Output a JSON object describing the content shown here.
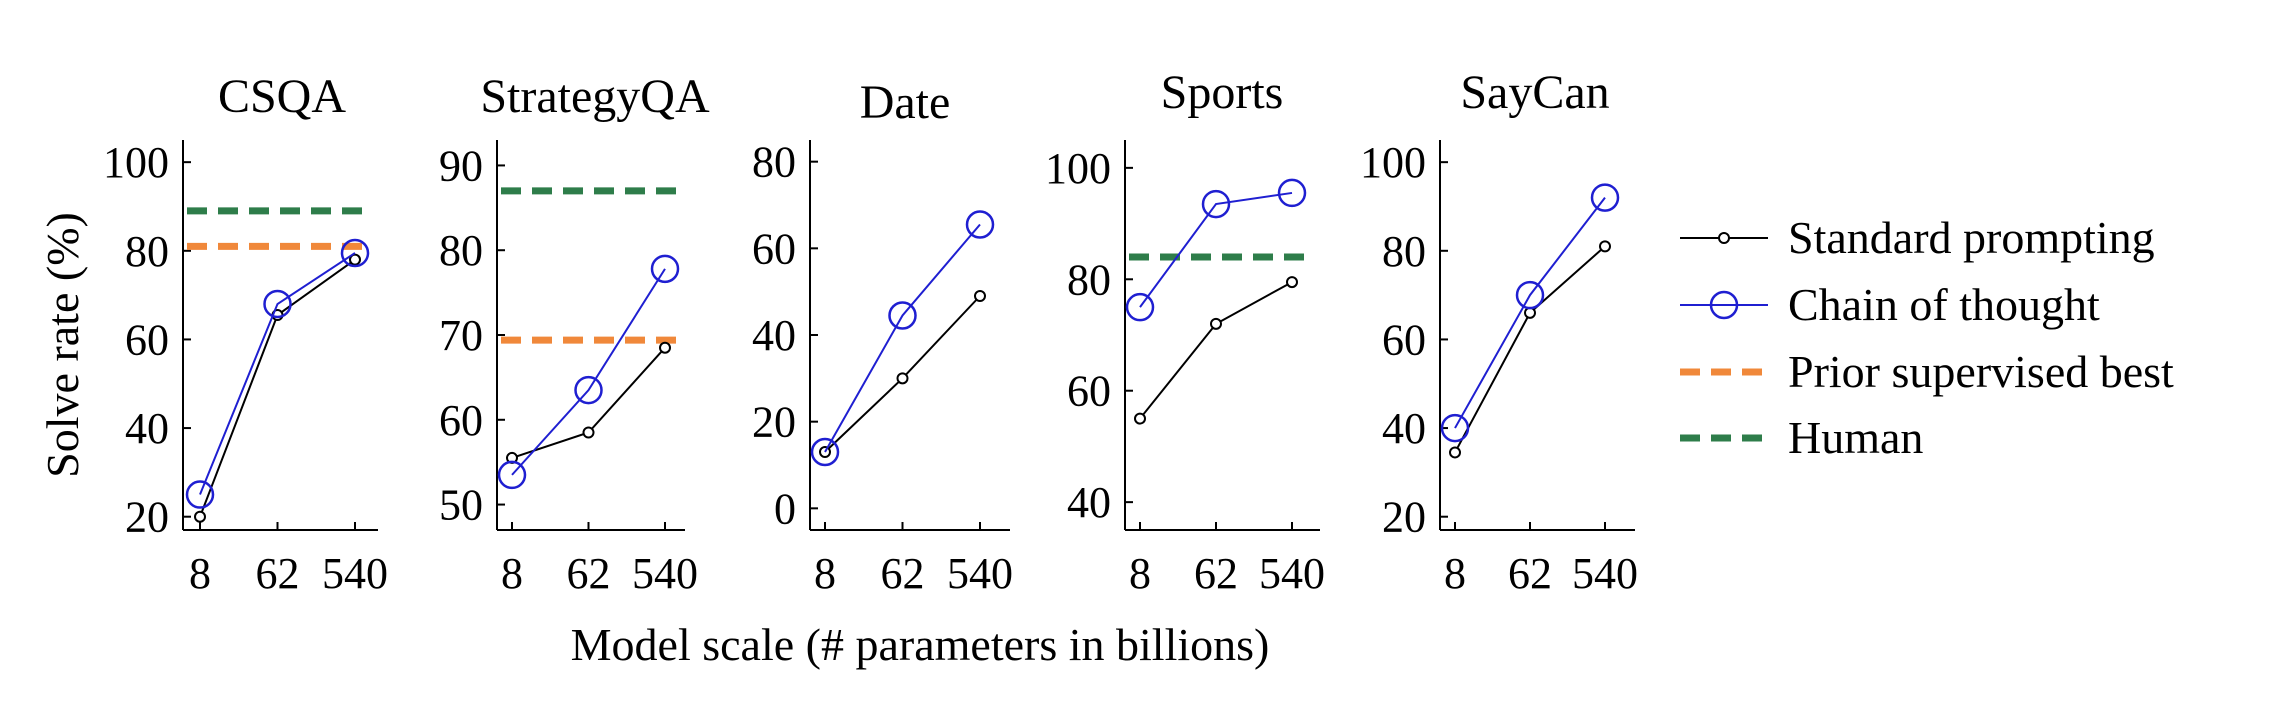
{
  "figure": {
    "ylabel": "Solve rate (%)",
    "xlabel": "Model scale (# parameters in billions)"
  },
  "legend": {
    "position": "right",
    "items": [
      {
        "label": "Standard prompting",
        "kind": "line-small-marker",
        "color": "#000000"
      },
      {
        "label": "Chain of thought",
        "kind": "line-large-marker",
        "color": "#1f1fd1"
      },
      {
        "label": "Prior supervised best",
        "kind": "dashed",
        "color": "#f0883a"
      },
      {
        "label": "Human",
        "kind": "dashed",
        "color": "#2e7d4a"
      }
    ]
  },
  "colors": {
    "standard": "#000000",
    "cot": "#1f1fd1",
    "prior": "#f0883a",
    "human": "#2e7d4a"
  },
  "chart_data": [
    {
      "type": "line",
      "title": "CSQA",
      "x": [
        "8",
        "62",
        "540"
      ],
      "ylim": [
        17,
        105
      ],
      "yticks": [
        20,
        40,
        60,
        80,
        100
      ],
      "series": [
        {
          "name": "Standard prompting",
          "values": [
            20,
            65.5,
            78
          ]
        },
        {
          "name": "Chain of thought",
          "values": [
            25,
            68,
            79.5
          ]
        }
      ],
      "prior_supervised_best": 81,
      "human": 89
    },
    {
      "type": "line",
      "title": "StrategyQA",
      "x": [
        "8",
        "62",
        "540"
      ],
      "ylim": [
        47,
        93
      ],
      "yticks": [
        50,
        60,
        70,
        80,
        90
      ],
      "series": [
        {
          "name": "Standard prompting",
          "values": [
            55.5,
            58.5,
            68.5
          ]
        },
        {
          "name": "Chain of thought",
          "values": [
            53.5,
            63.5,
            77.8
          ]
        }
      ],
      "prior_supervised_best": 69.4,
      "human": 87
    },
    {
      "type": "line",
      "title": "Date",
      "x": [
        "8",
        "62",
        "540"
      ],
      "ylim": [
        -5,
        85
      ],
      "yticks": [
        0,
        20,
        40,
        60,
        80
      ],
      "series": [
        {
          "name": "Standard prompting",
          "values": [
            13,
            30,
            49
          ]
        },
        {
          "name": "Chain of thought",
          "values": [
            13,
            44.5,
            65.5
          ]
        }
      ],
      "prior_supervised_best": null,
      "human": null
    },
    {
      "type": "line",
      "title": "Sports",
      "x": [
        "8",
        "62",
        "540"
      ],
      "ylim": [
        35,
        105
      ],
      "yticks": [
        40,
        60,
        80,
        100
      ],
      "series": [
        {
          "name": "Standard prompting",
          "values": [
            55,
            72,
            79.5
          ]
        },
        {
          "name": "Chain of thought",
          "values": [
            75,
            93.5,
            95.5
          ]
        }
      ],
      "prior_supervised_best": null,
      "human": 84
    },
    {
      "type": "line",
      "title": "SayCan",
      "x": [
        "8",
        "62",
        "540"
      ],
      "ylim": [
        17,
        105
      ],
      "yticks": [
        20,
        40,
        60,
        80,
        100
      ],
      "series": [
        {
          "name": "Standard prompting",
          "values": [
            34.5,
            66,
            81
          ]
        },
        {
          "name": "Chain of thought",
          "values": [
            40,
            70,
            92
          ]
        }
      ],
      "prior_supervised_best": null,
      "human": null
    }
  ]
}
